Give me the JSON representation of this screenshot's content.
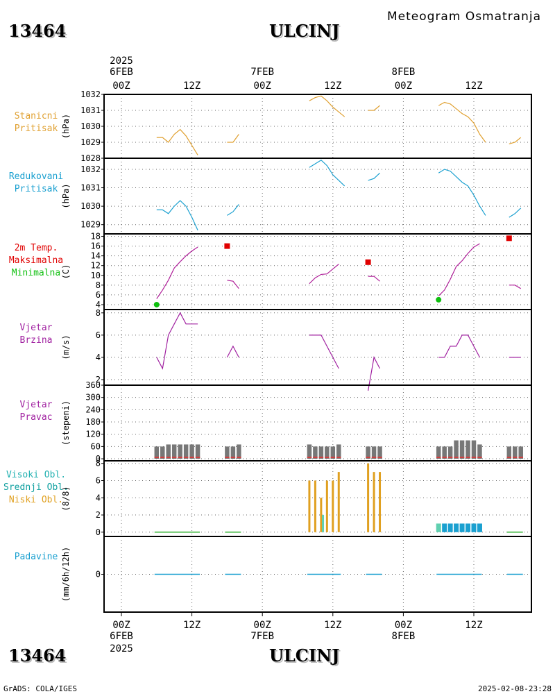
{
  "header": {
    "station_id": "13464",
    "station_name": "ULCINJ",
    "subtitle": "Meteogram Osmatranja"
  },
  "footer": {
    "station_id": "13464",
    "station_name": "ULCINJ",
    "credit": "GrADS: COLA/IGES",
    "timestamp": "2025-02-08-23:28"
  },
  "colors": {
    "station_pressure": "#e0a030",
    "reduced_pressure": "#1aa0d0",
    "temperature": "#b0209a",
    "max_temp": "#e00000",
    "min_temp": "#10c010",
    "wind": "#a020a0",
    "wind_dir_bar": "#777777",
    "wind_dir_base": "#d04040",
    "high_cloud": "#20b0b0",
    "mid_cloud": "#60d0b0",
    "low_cloud": "#e0a020",
    "precip": "#1aa0d0",
    "panel_label_cloud_high": "#20b0b0",
    "panel_label_cloud_mid": "#10a0a0",
    "total_cloud_bar": "#1aa0d0"
  },
  "chart_data": {
    "type": "line",
    "time_axis": {
      "start": "2025-02-06 00Z",
      "end": "2025-02-08 18Z",
      "top_labels": {
        "year": "2025",
        "days": [
          "6FEB",
          "7FEB",
          "8FEB"
        ],
        "hours": [
          "00Z",
          "12Z",
          "00Z",
          "12Z",
          "00Z",
          "12Z"
        ]
      },
      "bottom_labels": {
        "hours": [
          "00Z",
          "12Z",
          "00Z",
          "12Z",
          "00Z",
          "12Z"
        ],
        "days": [
          "6FEB",
          "7FEB",
          "8FEB"
        ],
        "year": "2025"
      }
    },
    "panels": [
      {
        "id": "station_pressure",
        "label_lines": [
          "Stanicni",
          "Pritisak"
        ],
        "ylabel": "(hPa)",
        "ylim": [
          1028,
          1032
        ],
        "yticks": [
          1028,
          1029,
          1030,
          1031,
          1032
        ],
        "grid": true,
        "series": [
          {
            "segments": [
              [
                [
                  6,
                  1029.3
                ],
                [
                  7,
                  1029.3
                ],
                [
                  8,
                  1029.0
                ],
                [
                  9,
                  1029.5
                ],
                [
                  10,
                  1029.8
                ],
                [
                  11,
                  1029.4
                ],
                [
                  12,
                  1028.8
                ],
                [
                  13,
                  1028.2
                ]
              ],
              [
                [
                  18,
                  1029.0
                ],
                [
                  19,
                  1029.0
                ],
                [
                  20,
                  1029.5
                ]
              ],
              [
                [
                  32,
                  1031.6
                ],
                [
                  33,
                  1031.8
                ],
                [
                  34,
                  1031.9
                ],
                [
                  35,
                  1031.6
                ],
                [
                  36,
                  1031.2
                ],
                [
                  37,
                  1030.9
                ],
                [
                  38,
                  1030.6
                ]
              ],
              [
                [
                  42,
                  1031.0
                ],
                [
                  43,
                  1031.0
                ],
                [
                  44,
                  1031.3
                ]
              ],
              [
                [
                  54,
                  1031.3
                ],
                [
                  55,
                  1031.5
                ],
                [
                  56,
                  1031.4
                ],
                [
                  57,
                  1031.1
                ],
                [
                  58,
                  1030.8
                ],
                [
                  59,
                  1030.6
                ],
                [
                  60,
                  1030.2
                ],
                [
                  61,
                  1029.5
                ],
                [
                  62,
                  1029.0
                ]
              ],
              [
                [
                  66,
                  1028.9
                ],
                [
                  67,
                  1029.0
                ],
                [
                  68,
                  1029.3
                ]
              ]
            ]
          }
        ]
      },
      {
        "id": "reduced_pressure",
        "label_lines": [
          "Redukovani",
          "Pritisak"
        ],
        "ylabel": "(hPa)",
        "ylim": [
          1028.5,
          1032.6
        ],
        "yticks": [
          1029,
          1030,
          1031,
          1032
        ],
        "grid": true,
        "series": [
          {
            "segments": [
              [
                [
                  6,
                  1029.8
                ],
                [
                  7,
                  1029.8
                ],
                [
                  8,
                  1029.6
                ],
                [
                  9,
                  1030.0
                ],
                [
                  10,
                  1030.3
                ],
                [
                  11,
                  1030.0
                ],
                [
                  12,
                  1029.4
                ],
                [
                  13,
                  1028.7
                ]
              ],
              [
                [
                  18,
                  1029.5
                ],
                [
                  19,
                  1029.7
                ],
                [
                  20,
                  1030.1
                ]
              ],
              [
                [
                  32,
                  1032.1
                ],
                [
                  33,
                  1032.3
                ],
                [
                  34,
                  1032.5
                ],
                [
                  35,
                  1032.2
                ],
                [
                  36,
                  1031.7
                ],
                [
                  37,
                  1031.4
                ],
                [
                  38,
                  1031.1
                ]
              ],
              [
                [
                  42,
                  1031.4
                ],
                [
                  43,
                  1031.5
                ],
                [
                  44,
                  1031.8
                ]
              ],
              [
                [
                  54,
                  1031.8
                ],
                [
                  55,
                  1032.0
                ],
                [
                  56,
                  1031.9
                ],
                [
                  57,
                  1031.6
                ],
                [
                  58,
                  1031.3
                ],
                [
                  59,
                  1031.1
                ],
                [
                  60,
                  1030.6
                ],
                [
                  61,
                  1030.0
                ],
                [
                  62,
                  1029.5
                ]
              ],
              [
                [
                  66,
                  1029.4
                ],
                [
                  67,
                  1029.6
                ],
                [
                  68,
                  1029.9
                ]
              ]
            ]
          }
        ]
      },
      {
        "id": "temperature",
        "label_lines": [
          "2m Temp.",
          "Maksimalna",
          "Minimalna"
        ],
        "ylabel": "(C)",
        "ylim": [
          3,
          18.5
        ],
        "yticks": [
          4,
          6,
          8,
          10,
          12,
          14,
          16,
          18
        ],
        "grid": true,
        "series": [
          {
            "name": "2m Temp.",
            "segments": [
              [
                [
                  6,
                  5.2
                ],
                [
                  7,
                  7.0
                ],
                [
                  8,
                  9.0
                ],
                [
                  9,
                  11.5
                ],
                [
                  10,
                  12.8
                ],
                [
                  11,
                  14.0
                ],
                [
                  12,
                  15.0
                ],
                [
                  13,
                  15.8
                ]
              ],
              [
                [
                  18,
                  9.0
                ],
                [
                  19,
                  8.8
                ],
                [
                  20,
                  7.3
                ]
              ],
              [
                [
                  32,
                  8.3
                ],
                [
                  33,
                  9.5
                ],
                [
                  34,
                  10.2
                ],
                [
                  35,
                  10.3
                ],
                [
                  36,
                  11.3
                ],
                [
                  37,
                  12.3
                ]
              ],
              [
                [
                  42,
                  9.8
                ],
                [
                  43,
                  9.8
                ],
                [
                  44,
                  8.8
                ]
              ],
              [
                [
                  54,
                  5.8
                ],
                [
                  55,
                  7.0
                ],
                [
                  56,
                  9.2
                ],
                [
                  57,
                  11.8
                ],
                [
                  58,
                  13.0
                ],
                [
                  59,
                  14.5
                ],
                [
                  60,
                  15.8
                ],
                [
                  61,
                  16.5
                ]
              ],
              [
                [
                  66,
                  8.0
                ],
                [
                  67,
                  8.0
                ],
                [
                  68,
                  7.3
                ]
              ]
            ]
          },
          {
            "name": "Maksimalna",
            "points": [
              [
                18,
                16
              ],
              [
                42,
                12.7
              ],
              [
                66,
                17.6
              ]
            ]
          },
          {
            "name": "Minimalna",
            "points": [
              [
                6,
                4
              ],
              [
                54,
                5
              ]
            ]
          }
        ]
      },
      {
        "id": "wind_speed",
        "label_lines": [
          "Vjetar",
          "Brzina"
        ],
        "ylabel": "(m/s)",
        "ylim": [
          1.5,
          8.3
        ],
        "yticks": [
          2,
          4,
          6,
          8
        ],
        "grid": true,
        "series": [
          {
            "segments": [
              [
                [
                  6,
                  4
                ],
                [
                  7,
                  3
                ],
                [
                  8,
                  6
                ],
                [
                  9,
                  7
                ],
                [
                  10,
                  8
                ],
                [
                  11,
                  7
                ],
                [
                  12,
                  7
                ],
                [
                  13,
                  7
                ]
              ],
              [
                [
                  18,
                  4
                ],
                [
                  19,
                  5
                ],
                [
                  20,
                  4
                ]
              ],
              [
                [
                  32,
                  6
                ],
                [
                  33,
                  6
                ],
                [
                  34,
                  6
                ],
                [
                  35,
                  5
                ],
                [
                  36,
                  4
                ],
                [
                  37,
                  3
                ]
              ],
              [
                [
                  42,
                  1
                ],
                [
                  43,
                  4
                ],
                [
                  44,
                  3
                ]
              ],
              [
                [
                  54,
                  4
                ],
                [
                  55,
                  4
                ],
                [
                  56,
                  5
                ],
                [
                  57,
                  5
                ],
                [
                  58,
                  6
                ],
                [
                  59,
                  6
                ],
                [
                  60,
                  5
                ],
                [
                  61,
                  4
                ]
              ],
              [
                [
                  66,
                  4
                ],
                [
                  67,
                  4
                ],
                [
                  68,
                  4
                ]
              ]
            ]
          }
        ]
      },
      {
        "id": "wind_dir",
        "label_lines": [
          "Vjetar",
          "Pravac"
        ],
        "ylabel": "(stepeni)",
        "ylim": [
          -10,
          360
        ],
        "yticks": [
          0,
          60,
          120,
          180,
          240,
          300,
          360
        ],
        "ytick_labels": [
          "0",
          "60",
          "120",
          "180",
          "240",
          "300",
          "360"
        ],
        "grid": true,
        "type": "bar",
        "bars": [
          [
            6,
            60
          ],
          [
            7,
            60
          ],
          [
            8,
            70
          ],
          [
            9,
            70
          ],
          [
            10,
            70
          ],
          [
            11,
            70
          ],
          [
            12,
            70
          ],
          [
            13,
            70
          ],
          [
            18,
            60
          ],
          [
            19,
            60
          ],
          [
            20,
            70
          ],
          [
            32,
            70
          ],
          [
            33,
            60
          ],
          [
            34,
            60
          ],
          [
            35,
            60
          ],
          [
            36,
            60
          ],
          [
            37,
            70
          ],
          [
            42,
            60
          ],
          [
            43,
            60
          ],
          [
            44,
            60
          ],
          [
            54,
            60
          ],
          [
            55,
            60
          ],
          [
            56,
            60
          ],
          [
            57,
            90
          ],
          [
            58,
            90
          ],
          [
            59,
            90
          ],
          [
            60,
            90
          ],
          [
            61,
            70
          ],
          [
            66,
            60
          ],
          [
            67,
            60
          ],
          [
            68,
            60
          ]
        ]
      },
      {
        "id": "clouds",
        "label_lines": [
          "Visoki Obl.",
          "Srednji Obl.",
          "Niski Obl."
        ],
        "ylabel": "(8/8)",
        "ylim": [
          -0.5,
          8.3
        ],
        "yticks": [
          0,
          2,
          4,
          6,
          8
        ],
        "grid": true,
        "type": "bar",
        "low": [
          [
            32,
            6
          ],
          [
            33,
            6
          ],
          [
            34,
            4
          ],
          [
            35,
            6
          ],
          [
            36,
            6
          ],
          [
            37,
            7
          ],
          [
            42,
            8
          ],
          [
            43,
            7
          ],
          [
            44,
            7
          ]
        ],
        "mid": [
          [
            34,
            2
          ]
        ],
        "total_bars": [
          [
            54,
            1
          ],
          [
            55,
            1
          ],
          [
            56,
            1
          ],
          [
            57,
            1
          ],
          [
            58,
            1
          ],
          [
            59,
            1
          ],
          [
            60,
            1
          ],
          [
            61,
            1
          ]
        ],
        "zero_ranges": [
          [
            6,
            13
          ],
          [
            18,
            20
          ],
          [
            66,
            68
          ]
        ]
      },
      {
        "id": "precip",
        "label_lines": [
          "Padavine"
        ],
        "ylabel": "(mm/6h/12h)",
        "ylim": [
          -5,
          5
        ],
        "yticks": [
          0
        ],
        "grid": true,
        "zero_ranges": [
          [
            6,
            13
          ],
          [
            18,
            20
          ],
          [
            32,
            37
          ],
          [
            42,
            44
          ],
          [
            54,
            61
          ],
          [
            66,
            68
          ]
        ]
      }
    ]
  }
}
